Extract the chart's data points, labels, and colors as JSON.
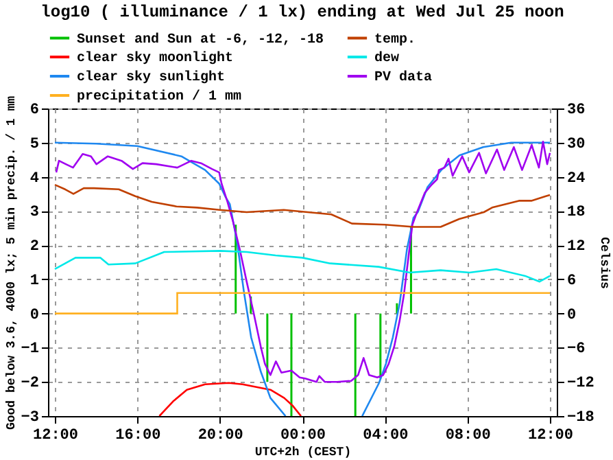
{
  "chart_data": {
    "type": "line",
    "title": "log10 ( illuminance / 1 lx) ending at Wed Jul 25 noon",
    "xlabel": "UTC+2h (CEST)",
    "ylabel": "Good below 3.6, 4000 lx; 5 min precip. / 1 mm",
    "y2label": "Celsius",
    "xlim": [
      "--07-24T12:00",
      "--07-25T12:00"
    ],
    "xticks": [
      {
        "value": "--07-24T12:00",
        "label": "12:00"
      },
      {
        "value": "--07-24T16:00",
        "label": "16:00"
      },
      {
        "value": "--07-24T20:00",
        "label": "20:00"
      },
      {
        "value": "--07-25T00:00",
        "label": "00:00"
      },
      {
        "value": "--07-25T04:00",
        "label": "04:00"
      },
      {
        "value": "--07-25T08:00",
        "label": "08:00"
      },
      {
        "value": "--07-25T12:00",
        "label": "12:00"
      }
    ],
    "ylim": [
      -3,
      6
    ],
    "yticks": [
      -3,
      -2,
      -1,
      0,
      1,
      2,
      3,
      4,
      5,
      6
    ],
    "y2lim": [
      -18,
      36
    ],
    "y2ticks": [
      -18,
      -12,
      -6,
      0,
      6,
      12,
      18,
      24,
      30,
      36
    ],
    "grid": true,
    "legend": "top",
    "series": [
      {
        "name": "Sunset and Sun at -6, -12, -18",
        "type": "bar",
        "color": "#00c000",
        "x": [
          "--07-24T20:46",
          "--07-24T21:30",
          "--07-24T22:18",
          "--07-24T23:28",
          "--07-25T02:34",
          "--07-25T03:47",
          "--07-25T04:35",
          "--07-25T05:16"
        ],
        "values": [
          2.6,
          0.5,
          -2.0,
          -3,
          -3,
          -1.9,
          0.3,
          2.55
        ]
      },
      {
        "name": "temp.",
        "axis": "y2",
        "color": "#c04000",
        "x": [
          "--07-24T12:00",
          "--07-24T12:30",
          "--07-24T12:54",
          "--07-24T13:24",
          "--07-24T13:54",
          "--07-24T15:06",
          "--07-24T15:54",
          "--07-24T16:42",
          "--07-24T17:54",
          "--07-24T18:54",
          "--07-24T20:00",
          "--07-24T21:18",
          "--07-24T23:06",
          "--07-25T01:24",
          "--07-25T02:24",
          "--07-25T04:00",
          "--07-25T05:24",
          "--07-25T06:42",
          "--07-25T07:36",
          "--07-25T08:48",
          "--07-25T09:12",
          "--07-25T10:30",
          "--07-25T11:06",
          "--07-25T11:48",
          "--07-25T12:00"
        ],
        "values": [
          22.6,
          21.8,
          21,
          22,
          22,
          21.8,
          20.6,
          19.6,
          18.8,
          18.6,
          18.2,
          17.8,
          18.2,
          17.4,
          15.8,
          15.6,
          15.2,
          15.2,
          16.6,
          17.8,
          18.6,
          19.8,
          19.8,
          20.6,
          20.8
        ]
      },
      {
        "name": "clear sky moonlight",
        "color": "#ff0000",
        "x": [
          "--07-24T17:04",
          "--07-24T17:44",
          "--07-24T18:24",
          "--07-24T19:17",
          "--07-24T20:26",
          "--07-24T21:06",
          "--07-24T22:27",
          "--07-24T23:07",
          "--07-24T23:32",
          "--07-24T23:56"
        ],
        "values": [
          -3,
          -2.57,
          -2.23,
          -2.07,
          -2.03,
          -2.07,
          -2.23,
          -2.47,
          -2.7,
          -3
        ]
      },
      {
        "name": "dew",
        "axis": "y2",
        "color": "#00e8e8",
        "x": [
          "--07-24T12:00",
          "--07-24T13:00",
          "--07-24T14:12",
          "--07-24T14:36",
          "--07-24T15:54",
          "--07-24T17:18",
          "--07-24T20:00",
          "--07-24T21:18",
          "--07-24T22:42",
          "--07-25T00:00",
          "--07-25T01:21",
          "--07-25T03:42",
          "--07-25T05:12",
          "--07-25T06:42",
          "--07-25T08:06",
          "--07-25T09:24",
          "--07-25T10:48",
          "--07-25T11:30",
          "--07-25T12:00"
        ],
        "values": [
          7.8,
          9.8,
          9.8,
          8.6,
          8.8,
          10.8,
          11,
          10.8,
          10.2,
          9.8,
          8.8,
          8.2,
          7.2,
          7.6,
          7.2,
          7.8,
          6.6,
          5.6,
          6.6
        ]
      },
      {
        "name": "clear sky sunlight",
        "color": "#1e88f0",
        "x": [
          "--07-24T12:00",
          "--07-24T14:00",
          "--07-24T16:00",
          "--07-24T18:08",
          "--07-24T19:17",
          "--07-24T19:58",
          "--07-24T20:17",
          "--07-24T20:29",
          "--07-24T20:50",
          "--07-24T21:10",
          "--07-24T21:31",
          "--07-24T21:59",
          "--07-24T22:27",
          "--07-24T23:11",
          "--07-25T01:00",
          "--07-25T02:54",
          "--07-25T03:43",
          "--07-25T04:03",
          "--07-25T04:23",
          "--07-25T04:43",
          "--07-25T05:04",
          "--07-25T05:23",
          "--07-25T05:36",
          "--07-25T06:04",
          "--07-25T06:44",
          "--07-25T07:37",
          "--07-25T08:46",
          "--07-25T10:07",
          "--07-25T12:00"
        ],
        "values": [
          5,
          4.97,
          4.9,
          4.6,
          4.2,
          3.8,
          3.4,
          3.2,
          2.1,
          0.63,
          -0.7,
          -1.7,
          -2.47,
          -3,
          null,
          -3,
          -2.03,
          -1.47,
          -0.7,
          0.3,
          1.87,
          2.8,
          2.97,
          3.7,
          4.2,
          4.63,
          4.87,
          5.0,
          5.0
        ]
      },
      {
        "name": "PV data",
        "color": "#a000f0",
        "x": [
          "--07-24T12:04",
          "--07-24T12:12",
          "--07-24T12:32",
          "--07-24T12:53",
          "--07-24T13:21",
          "--07-24T13:45",
          "--07-24T14:01",
          "--07-24T14:34",
          "--07-24T15:14",
          "--07-24T15:47",
          "--07-24T16:15",
          "--07-24T16:55",
          "--07-24T17:56",
          "--07-24T18:37",
          "--07-24T19:05",
          "--07-24T19:37",
          "--07-24T19:58",
          "--07-24T20:05",
          "--07-24T20:22",
          "--07-24T20:38",
          "--07-24T20:58",
          "--07-24T21:18",
          "--07-24T21:38",
          "--07-24T21:59",
          "--07-24T22:11",
          "--07-24T22:27",
          "--07-24T22:43",
          "--07-24T22:59",
          "--07-24T23:28",
          "--07-24T23:52",
          "--07-25T00:08",
          "--07-25T00:41",
          "--07-25T00:49",
          "--07-25T01:05",
          "--07-25T01:41",
          "--07-25T02:22",
          "--07-25T02:42",
          "--07-25T02:58",
          "--07-25T03:14",
          "--07-25T03:38",
          "--07-25T03:55",
          "--07-25T04:11",
          "--07-25T04:27",
          "--07-25T04:43",
          "--07-25T04:55",
          "--07-25T05:07",
          "--07-25T05:20",
          "--07-25T05:32",
          "--07-25T05:56",
          "--07-25T06:16",
          "--07-25T06:32",
          "--07-25T06:37",
          "--07-25T06:53",
          "--07-25T07:05",
          "--07-25T07:17",
          "--07-25T07:45",
          "--07-25T08:05",
          "--07-25T08:34",
          "--07-25T08:54",
          "--07-25T09:26",
          "--07-25T09:47",
          "--07-25T10:15",
          "--07-25T10:39",
          "--07-25T11:07",
          "--07-25T11:28",
          "--07-25T11:40",
          "--07-25T11:52",
          "--07-25T12:00"
        ],
        "values": [
          4.13,
          4.47,
          4.37,
          4.27,
          4.67,
          4.6,
          4.37,
          4.6,
          4.47,
          4.23,
          4.4,
          4.37,
          4.27,
          4.47,
          4.4,
          4.23,
          4.13,
          3.8,
          3.27,
          2.7,
          1.87,
          0.93,
          0.03,
          -0.97,
          -1.47,
          -1.8,
          -1.4,
          -1.73,
          -1.67,
          -1.87,
          -1.9,
          -2.0,
          -1.83,
          -2.0,
          -2.0,
          -1.97,
          -1.8,
          -1.3,
          -1.8,
          -1.87,
          -1.8,
          -1.47,
          -0.97,
          -0.2,
          0.53,
          1.53,
          2.6,
          2.93,
          3.53,
          3.77,
          3.93,
          4.2,
          4.27,
          4.53,
          4.03,
          4.6,
          4.13,
          4.7,
          4.1,
          4.8,
          4.2,
          4.87,
          4.2,
          4.93,
          4.27,
          5.03,
          4.37,
          4.7
        ]
      },
      {
        "name": "precipitation / 1 mm",
        "type": "step",
        "color": "#ffb020",
        "x": [
          "--07-24T12:00",
          "--07-24T17:56",
          "--07-25T12:00"
        ],
        "values": [
          0,
          0.6,
          0.6
        ]
      }
    ]
  }
}
